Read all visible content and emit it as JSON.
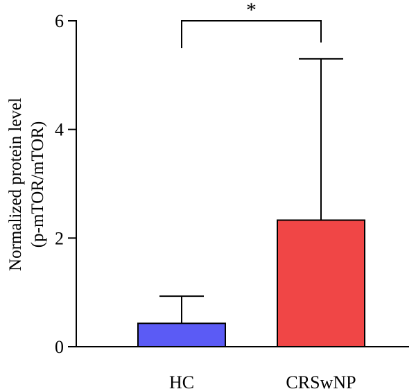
{
  "chart_data": {
    "type": "bar",
    "categories": [
      "HC",
      "CRSwNP"
    ],
    "series": [
      {
        "values": [
          0.43,
          2.33
        ],
        "error_upper": [
          0.93,
          5.3
        ],
        "colors": [
          "#5b5bf5",
          "#f04646"
        ]
      }
    ],
    "ylabel_lines": [
      "Normalized protein level",
      "(p-mTOR/mTOR)"
    ],
    "ylim": [
      0,
      6
    ],
    "yticks": [
      0,
      2,
      4,
      6
    ],
    "ytick_labels": [
      "0",
      "2",
      "4",
      "6"
    ],
    "grid": false,
    "legend": "none",
    "significance": {
      "between": [
        "HC",
        "CRSwNP"
      ],
      "label": "*",
      "level": 6.0,
      "drop_left": 5.5,
      "drop_right": 5.6
    },
    "colors": {
      "axis": "#000000",
      "bar_outline": "#000000"
    }
  }
}
